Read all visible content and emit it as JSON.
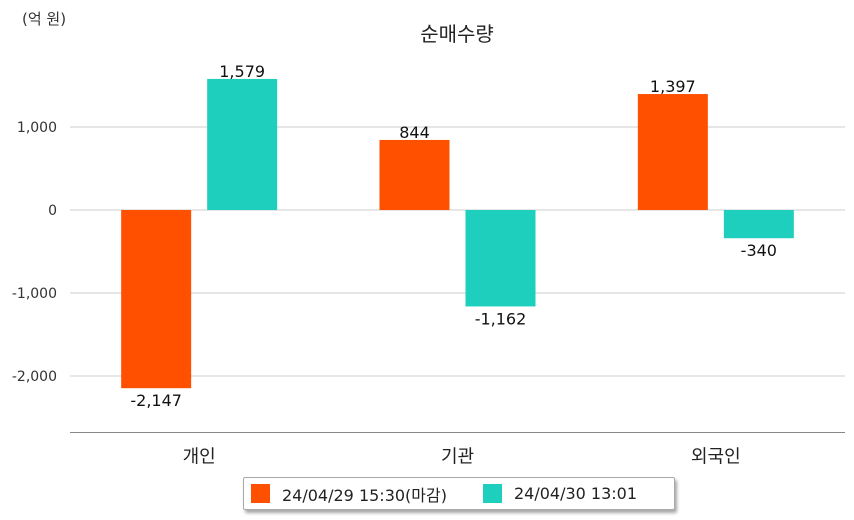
{
  "unit_label": "(억 원)",
  "colors": {
    "series1": "#ff5000",
    "series2": "#1ecfbe",
    "grid": "#cccccc",
    "axis": "#888888"
  },
  "chart_data": {
    "type": "bar",
    "title": "순매수량",
    "categories": [
      "개인",
      "기관",
      "외국인"
    ],
    "series": [
      {
        "name": "24/04/29 15:30(마감)",
        "values": [
          -2147,
          844,
          1397
        ],
        "labels": [
          "-2,147",
          "844",
          "1,397"
        ]
      },
      {
        "name": "24/04/30 13:01",
        "values": [
          1579,
          -1162,
          -340
        ],
        "labels": [
          "1,579",
          "-1,162",
          "-340"
        ]
      }
    ],
    "yticks": [
      1000,
      0,
      -1000,
      -2000
    ],
    "ytick_labels": [
      "1,000",
      "0",
      "-1,000",
      "-2,000"
    ],
    "ylim": [
      -2680,
      1880
    ],
    "grid": true,
    "legend_position": "bottom"
  }
}
